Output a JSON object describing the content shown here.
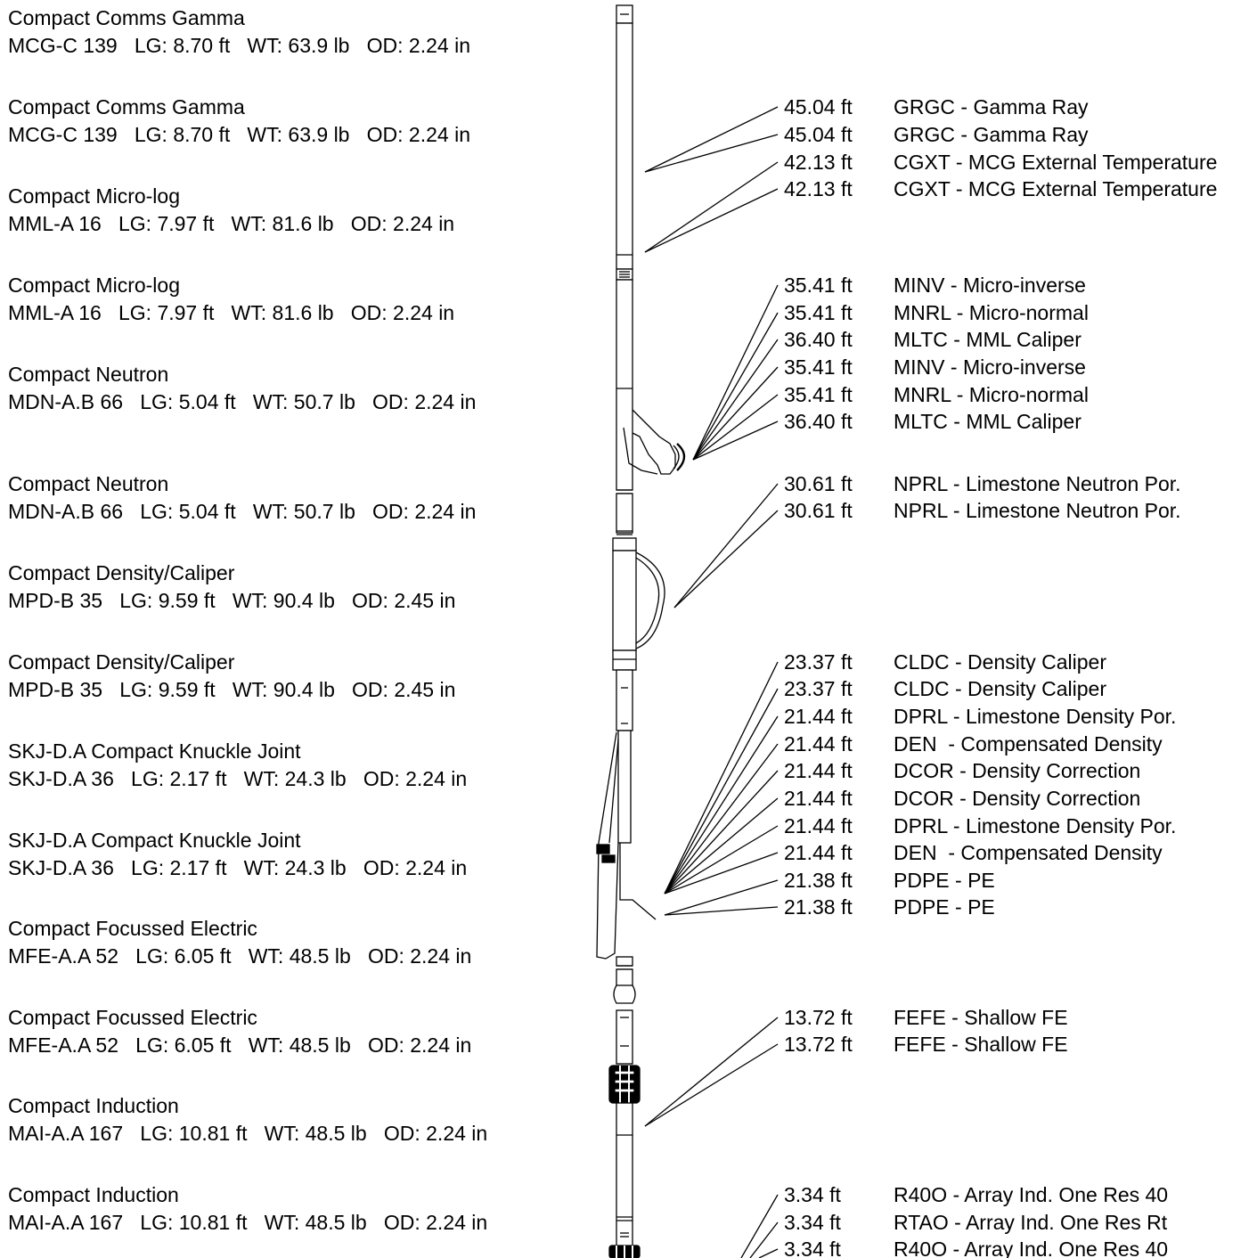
{
  "tools": [
    {
      "name": "Compact Comms Gamma",
      "spec": "MCG-C 139   LG: 8.70 ft   WT: 63.9 lb   OD: 2.24 in"
    },
    {
      "name": "Compact Comms Gamma",
      "spec": "MCG-C 139   LG: 8.70 ft   WT: 63.9 lb   OD: 2.24 in"
    },
    {
      "name": "Compact Micro-log",
      "spec": "MML-A 16   LG: 7.97 ft   WT: 81.6 lb   OD: 2.24 in"
    },
    {
      "name": "Compact Micro-log",
      "spec": "MML-A 16   LG: 7.97 ft   WT: 81.6 lb   OD: 2.24 in"
    },
    {
      "name": "Compact Neutron",
      "spec": "MDN-A.B 66   LG: 5.04 ft   WT: 50.7 lb   OD: 2.24 in"
    },
    {
      "name": "Compact Neutron",
      "spec": "MDN-A.B 66   LG: 5.04 ft   WT: 50.7 lb   OD: 2.24 in"
    },
    {
      "name": "Compact Density/Caliper",
      "spec": "MPD-B 35   LG: 9.59 ft   WT: 90.4 lb   OD: 2.45 in"
    },
    {
      "name": "Compact Density/Caliper",
      "spec": "MPD-B 35   LG: 9.59 ft   WT: 90.4 lb   OD: 2.45 in"
    },
    {
      "name": "SKJ-D.A Compact Knuckle Joint",
      "spec": "SKJ-D.A 36   LG: 2.17 ft   WT: 24.3 lb   OD: 2.24 in"
    },
    {
      "name": "SKJ-D.A Compact Knuckle Joint",
      "spec": "SKJ-D.A 36   LG: 2.17 ft   WT: 24.3 lb   OD: 2.24 in"
    },
    {
      "name": "Compact Focussed Electric",
      "spec": "MFE-A.A 52   LG: 6.05 ft   WT: 48.5 lb   OD: 2.24 in"
    },
    {
      "name": "Compact Focussed Electric",
      "spec": "MFE-A.A 52   LG: 6.05 ft   WT: 48.5 lb   OD: 2.24 in"
    },
    {
      "name": "Compact Induction",
      "spec": "MAI-A.A 167   LG: 10.81 ft   WT: 48.5 lb   OD: 2.24 in"
    },
    {
      "name": "Compact Induction",
      "spec": "MAI-A.A 167   LG: 10.81 ft   WT: 48.5 lb   OD: 2.24 in"
    }
  ],
  "measure_points": [
    {
      "offset": "45.04 ft",
      "mnemonic": "GRGC - Gamma Ray"
    },
    {
      "offset": "45.04 ft",
      "mnemonic": "GRGC - Gamma Ray"
    },
    {
      "offset": "42.13 ft",
      "mnemonic": "CGXT - MCG External Temperature"
    },
    {
      "offset": "42.13 ft",
      "mnemonic": "CGXT - MCG External Temperature"
    },
    {
      "offset": "35.41 ft",
      "mnemonic": "MINV - Micro-inverse"
    },
    {
      "offset": "35.41 ft",
      "mnemonic": "MNRL - Micro-normal"
    },
    {
      "offset": "36.40 ft",
      "mnemonic": "MLTC - MML Caliper"
    },
    {
      "offset": "35.41 ft",
      "mnemonic": "MINV - Micro-inverse"
    },
    {
      "offset": "35.41 ft",
      "mnemonic": "MNRL - Micro-normal"
    },
    {
      "offset": "36.40 ft",
      "mnemonic": "MLTC - MML Caliper"
    },
    {
      "offset": "30.61 ft",
      "mnemonic": "NPRL - Limestone Neutron Por."
    },
    {
      "offset": "30.61 ft",
      "mnemonic": "NPRL - Limestone Neutron Por."
    },
    {
      "offset": "23.37 ft",
      "mnemonic": "CLDC - Density Caliper"
    },
    {
      "offset": "23.37 ft",
      "mnemonic": "CLDC - Density Caliper"
    },
    {
      "offset": "21.44 ft",
      "mnemonic": "DPRL - Limestone Density Por."
    },
    {
      "offset": "21.44 ft",
      "mnemonic": "DEN  - Compensated Density"
    },
    {
      "offset": "21.44 ft",
      "mnemonic": "DCOR - Density Correction"
    },
    {
      "offset": "21.44 ft",
      "mnemonic": "DCOR - Density Correction"
    },
    {
      "offset": "21.44 ft",
      "mnemonic": "DPRL - Limestone Density Por."
    },
    {
      "offset": "21.44 ft",
      "mnemonic": "DEN  - Compensated Density"
    },
    {
      "offset": "21.38 ft",
      "mnemonic": "PDPE - PE"
    },
    {
      "offset": "21.38 ft",
      "mnemonic": "PDPE - PE"
    },
    {
      "offset": "13.72 ft",
      "mnemonic": "FEFE - Shallow FE"
    },
    {
      "offset": "13.72 ft",
      "mnemonic": "FEFE - Shallow FE"
    },
    {
      "offset": "3.34 ft",
      "mnemonic": "R40O - Array Ind. One Res 40"
    },
    {
      "offset": "3.34 ft",
      "mnemonic": "RTAO - Array Ind. One Res Rt"
    },
    {
      "offset": "3.34 ft",
      "mnemonic": "R40O - Array Ind. One Res 40"
    }
  ]
}
